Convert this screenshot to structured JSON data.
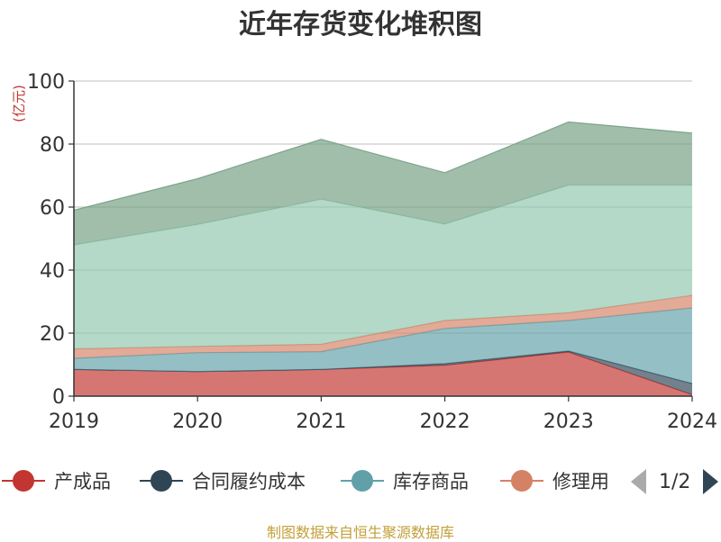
{
  "chart_data": {
    "type": "area",
    "stacked": true,
    "title": "近年存货变化堆积图",
    "ylabel": "(亿元)",
    "categories": [
      "2019",
      "2020",
      "2021",
      "2022",
      "2023",
      "2024"
    ],
    "ylim": [
      0,
      100
    ],
    "yticks": [
      0,
      20,
      40,
      60,
      80,
      100
    ],
    "grid": true,
    "series": [
      {
        "name": "产成品",
        "color": "#c23531",
        "values": [
          8.5,
          7.8,
          8.5,
          9.8,
          14.0,
          0.5
        ]
      },
      {
        "name": "合同履约成本",
        "color": "#2f4554",
        "values": [
          0.0,
          0.0,
          0.0,
          0.5,
          0.3,
          3.5
        ]
      },
      {
        "name": "库存商品",
        "color": "#61a0a8",
        "values": [
          3.5,
          6.0,
          5.6,
          11.2,
          9.7,
          24.0
        ]
      },
      {
        "name": "修理用",
        "color": "#d48265",
        "values": [
          3.0,
          2.0,
          2.4,
          2.5,
          2.5,
          4.0
        ]
      },
      {
        "color": "#91c7ae",
        "values": [
          33.0,
          38.7,
          46.0,
          30.6,
          40.5,
          35.0
        ]
      },
      {
        "color": "#749f83",
        "values": [
          11.0,
          14.5,
          19.0,
          16.3,
          20.0,
          16.5
        ]
      }
    ]
  },
  "legend": {
    "items": [
      {
        "label": "产成品",
        "color": "#c23531"
      },
      {
        "label": "合同履约成本",
        "color": "#2f4554"
      },
      {
        "label": "库存商品",
        "color": "#61a0a8"
      },
      {
        "label": "修理用",
        "color": "#d48265"
      }
    ],
    "pager_text": "1/2"
  },
  "source": "制图数据来自恒生聚源数据库"
}
